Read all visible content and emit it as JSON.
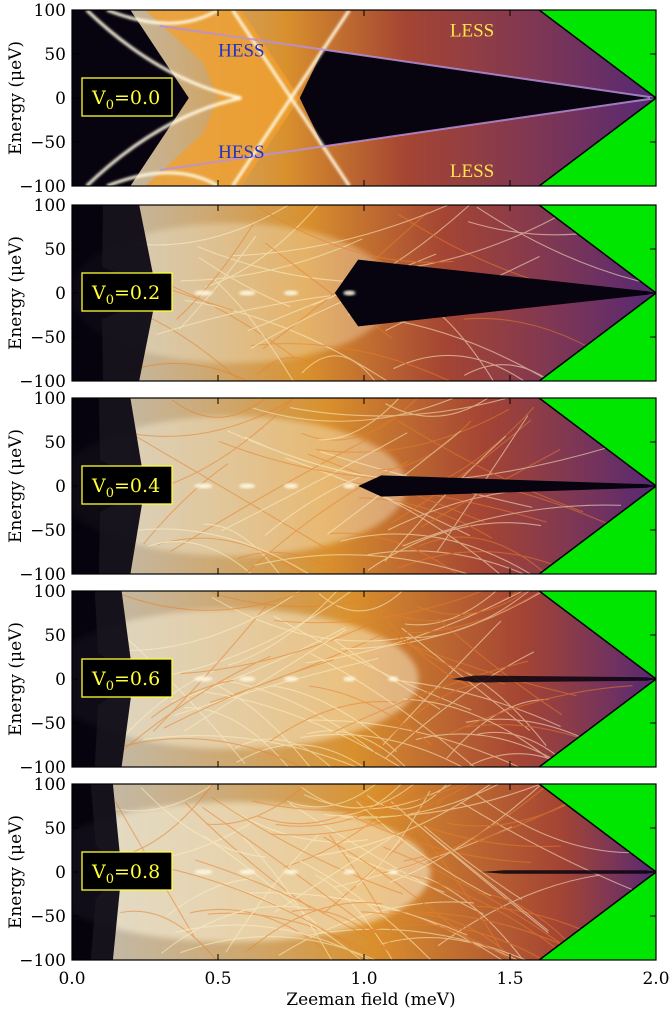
{
  "chart_data": {
    "type": "heatmap",
    "xlabel": "Zeeman field (meV)",
    "ylabel": "Energy (μeV)",
    "xlim": [
      0.0,
      2.0
    ],
    "ylim": [
      -100,
      100
    ],
    "xticks": [
      "0.0",
      "0.5",
      "1.0",
      "1.5",
      "2.0"
    ],
    "xtick_values": [
      0.0,
      0.5,
      1.0,
      1.5,
      2.0
    ],
    "yticks": [
      "100",
      "50",
      "0",
      "−50",
      "−100"
    ],
    "ytick_values": [
      100,
      50,
      0,
      -50,
      -100
    ],
    "colors": {
      "background": "#07030f",
      "gap_region": "#00e600",
      "high_density": "#fff8e0",
      "mid_density": "#f0a030",
      "low_density": "#5a2a7a",
      "label_box": "#ffff33",
      "hess_label": "#2233cc",
      "less_label": "#ffe44a"
    },
    "panels": [
      {
        "v0_symbol": "V",
        "v0_subscript": "0",
        "v0_value": "=0.0",
        "disorder": 0.0,
        "annotations": [
          {
            "text": "HESS",
            "x": 0.58,
            "y": 55,
            "kind": "hess"
          },
          {
            "text": "HESS",
            "x": 0.58,
            "y": -60,
            "kind": "hess"
          },
          {
            "text": "LESS",
            "x": 1.37,
            "y": 78,
            "kind": "less"
          },
          {
            "text": "LESS",
            "x": 1.37,
            "y": -82,
            "kind": "less"
          }
        ]
      },
      {
        "v0_symbol": "V",
        "v0_subscript": "0",
        "v0_value": "=0.2",
        "disorder": 0.2,
        "annotations": []
      },
      {
        "v0_symbol": "V",
        "v0_subscript": "0",
        "v0_value": "=0.4",
        "disorder": 0.4,
        "annotations": []
      },
      {
        "v0_symbol": "V",
        "v0_subscript": "0",
        "v0_value": "=0.6",
        "disorder": 0.6,
        "annotations": []
      },
      {
        "v0_symbol": "V",
        "v0_subscript": "0",
        "v0_value": "=0.8",
        "disorder": 0.8,
        "annotations": []
      }
    ]
  }
}
